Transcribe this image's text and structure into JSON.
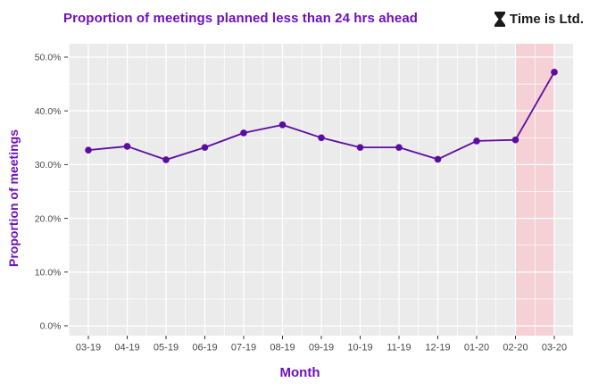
{
  "header": {
    "logo": {
      "icon": "hourglass-icon",
      "text": "Time is Ltd."
    }
  },
  "chart_data": {
    "type": "line",
    "title": "Proportion of meetings planned less than 24 hrs ahead",
    "xlabel": "Month",
    "ylabel": "Proportion of meetings",
    "categories": [
      "03-19",
      "04-19",
      "05-19",
      "06-19",
      "07-19",
      "08-19",
      "09-19",
      "10-19",
      "11-19",
      "12-19",
      "01-20",
      "02-20",
      "03-20"
    ],
    "values": [
      32.7,
      33.4,
      30.9,
      33.2,
      35.9,
      37.4,
      35.0,
      33.2,
      33.2,
      31.0,
      34.4,
      34.6,
      47.2
    ],
    "unit": "%",
    "y_ticks": [
      {
        "value": 0,
        "label": "0.0%"
      },
      {
        "value": 10,
        "label": "10.0%"
      },
      {
        "value": 20,
        "label": "20.0%"
      },
      {
        "value": 30,
        "label": "30.0%"
      },
      {
        "value": 40,
        "label": "40.0%"
      },
      {
        "value": 50,
        "label": "50.0%"
      }
    ],
    "ylim": [
      -1.8,
      52.5
    ],
    "grid": true,
    "legend": "none",
    "highlight_band": {
      "from_category": "02-20",
      "to_category": "03-20"
    },
    "colors": {
      "line": "#5c0da0",
      "point": "#5c0da0",
      "title": "#6e10bd",
      "axis_title": "#6e10bd",
      "tick_text": "#4a4a4a",
      "tick_mark": "#333333",
      "plot_bg": "#ebebeb",
      "grid_major": "#ffffff",
      "grid_minor": "#ffffff",
      "band": "#f5d0d5",
      "logo_text": "#1a1a1a",
      "background": "#ffffff"
    }
  }
}
